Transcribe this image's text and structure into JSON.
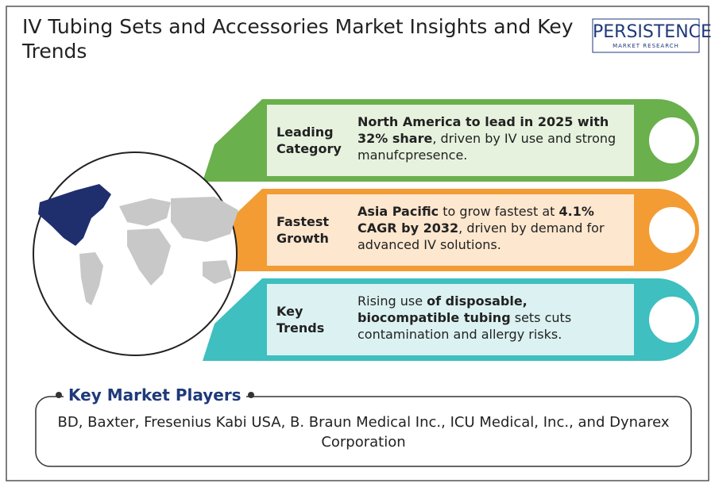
{
  "header": {
    "title": "IV Tubing Sets and Accessories Market Insights and Key Trends"
  },
  "logo": {
    "name": "PERSISTENCE",
    "tagline": "MARKET RESEARCH"
  },
  "cards": [
    {
      "label": "Leading Category",
      "color": "#6ab04c",
      "light": "#e6f2de",
      "segments": [
        {
          "text": "North America to lead in 2025 with 32% share",
          "bold": true
        },
        {
          "text": ", driven by IV use and strong manufcpresence.",
          "bold": false
        }
      ]
    },
    {
      "label": "Fastest Growth",
      "color": "#f39c33",
      "light": "#fde7cf",
      "segments": [
        {
          "text": "Asia Pacific",
          "bold": true
        },
        {
          "text": " to grow fastest at ",
          "bold": false
        },
        {
          "text": "4.1% CAGR by 2032",
          "bold": true
        },
        {
          "text": ", driven by demand for advanced IV solutions.",
          "bold": false
        }
      ]
    },
    {
      "label": "Key Trends",
      "color": "#3fbfbf",
      "light": "#dcf2f2",
      "segments": [
        {
          "text": "Rising use ",
          "bold": false
        },
        {
          "text": "of disposable, biocompatible tubing",
          "bold": true
        },
        {
          "text": " sets cuts contamination and allergy risks.",
          "bold": false
        }
      ]
    }
  ],
  "players": {
    "title": "Key Market Players",
    "text": "BD, Baxter, Fresenius Kabi USA, B. Braun Medical Inc., ICU Medical, Inc., and Dynarex Corporation"
  }
}
